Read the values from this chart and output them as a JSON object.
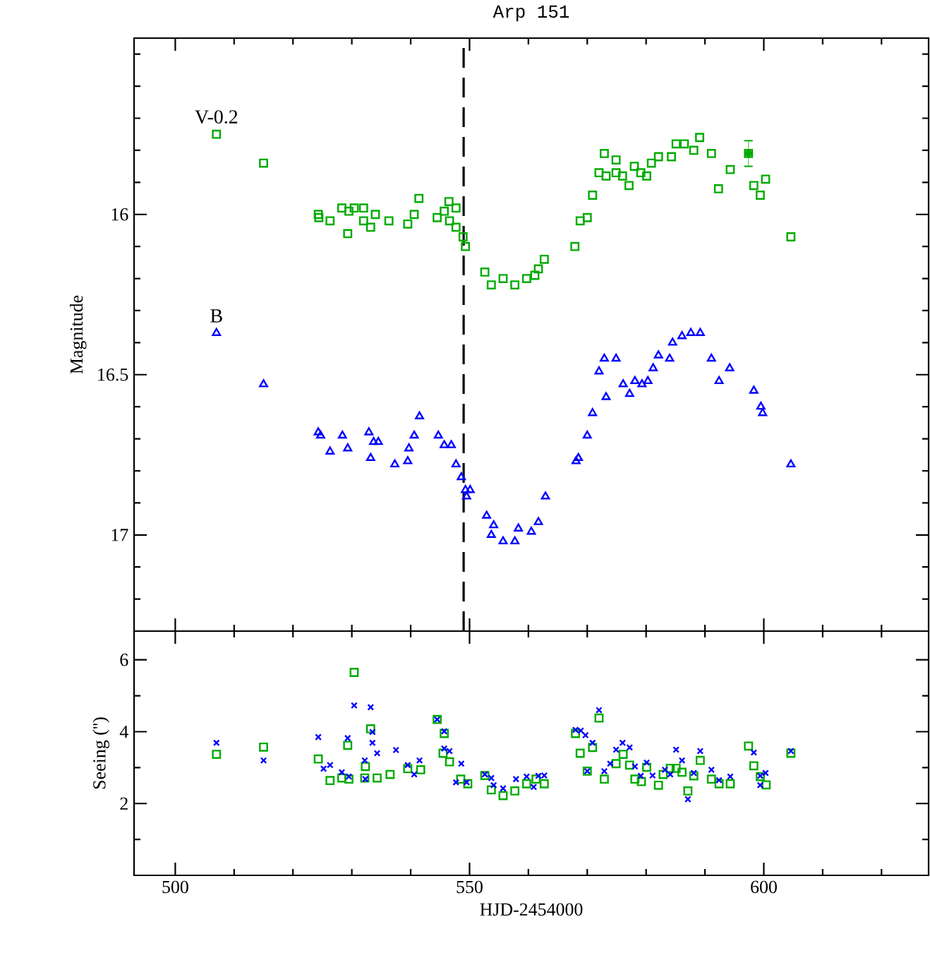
{
  "chart_data": [
    {
      "type": "scatter",
      "title": "Arp 151",
      "ylabel": "Magnitude",
      "xlim": [
        493,
        628
      ],
      "ylim": [
        17.3,
        15.45
      ],
      "xticks": [
        500,
        {
          "value": 510,
          "label": null
        },
        {
          "value": 520,
          "label": null
        },
        {
          "value": 530,
          "label": null
        },
        {
          "value": 540,
          "label": null
        },
        550,
        {
          "value": 560,
          "label": null
        },
        {
          "value": 570,
          "label": null
        },
        {
          "value": 580,
          "label": null
        },
        {
          "value": 590,
          "label": null
        },
        600,
        {
          "value": 610,
          "label": null
        },
        {
          "value": 620,
          "label": null
        }
      ],
      "yticks": [
        {
          "value": 15.5,
          "label": null
        },
        {
          "value": 15.6,
          "label": null
        },
        {
          "value": 15.7,
          "label": null
        },
        {
          "value": 15.8,
          "label": null
        },
        {
          "value": 15.9,
          "label": null
        },
        16,
        {
          "value": 16.1,
          "label": null
        },
        {
          "value": 16.2,
          "label": null
        },
        {
          "value": 16.3,
          "label": null
        },
        {
          "value": 16.4,
          "label": null
        },
        16.5,
        {
          "value": 16.6,
          "label": null
        },
        {
          "value": 16.7,
          "label": null
        },
        {
          "value": 16.8,
          "label": null
        },
        {
          "value": 16.9,
          "label": null
        },
        17,
        {
          "value": 17.1,
          "label": null
        },
        {
          "value": 17.2,
          "label": null
        }
      ],
      "tick_labels": "y",
      "ref_lines": [
        {
          "axis": "x",
          "value": 549,
          "color": "#000000",
          "line_style": "dashed"
        }
      ],
      "series": [
        {
          "name": "V-0.2",
          "color": "#00aa00",
          "marker": "square",
          "x": [
            507.0,
            515.0,
            524.3,
            524.4,
            526.3,
            528.3,
            529.3,
            529.5,
            530.4,
            532.0,
            532.0,
            533.2,
            534.0,
            536.3,
            539.5,
            540.6,
            541.4,
            544.5,
            545.7,
            546.5,
            547.7,
            546.6,
            547.7,
            548.9,
            549.3,
            552.6,
            553.7,
            555.7,
            557.7,
            559.7,
            561.1,
            561.7,
            562.7,
            567.9,
            568.8,
            570.0,
            570.9,
            572.0,
            572.9,
            573.2,
            574.9,
            574.9,
            576.0,
            577.1,
            578.0,
            579.1,
            580.1,
            580.9,
            582.1,
            584.3,
            585.1,
            586.5,
            588.1,
            589.1,
            591.1,
            592.3,
            594.3,
            597.4,
            598.3,
            599.4,
            600.3,
            604.6
          ],
          "values": [
            15.75,
            15.84,
            16.0,
            16.01,
            16.02,
            15.98,
            16.06,
            15.99,
            15.98,
            15.98,
            16.02,
            16.04,
            16.0,
            16.02,
            16.03,
            16.0,
            15.95,
            16.01,
            15.99,
            15.96,
            15.98,
            16.02,
            16.04,
            16.07,
            16.1,
            16.18,
            16.22,
            16.2,
            16.22,
            16.2,
            16.19,
            16.17,
            16.14,
            16.1,
            16.02,
            16.01,
            15.94,
            15.87,
            15.81,
            15.88,
            15.83,
            15.87,
            15.88,
            15.91,
            15.85,
            15.87,
            15.88,
            15.84,
            15.82,
            15.82,
            15.78,
            15.78,
            15.8,
            15.76,
            15.81,
            15.92,
            15.86,
            15.81,
            15.91,
            15.94,
            15.89,
            16.07
          ],
          "errors": [
            null,
            null,
            null,
            null,
            null,
            null,
            null,
            null,
            null,
            null,
            null,
            null,
            null,
            null,
            null,
            null,
            null,
            null,
            null,
            null,
            null,
            null,
            null,
            null,
            null,
            null,
            null,
            null,
            null,
            null,
            null,
            null,
            null,
            null,
            null,
            null,
            null,
            null,
            null,
            null,
            null,
            null,
            null,
            null,
            null,
            null,
            null,
            null,
            null,
            null,
            null,
            null,
            null,
            null,
            null,
            null,
            null,
            0.04,
            null,
            null,
            null,
            null
          ]
        },
        {
          "name": "B",
          "color": "#0000ff",
          "marker": "triangle",
          "x": [
            507.0,
            515.0,
            524.3,
            524.7,
            526.3,
            528.4,
            529.3,
            532.9,
            533.7,
            533.2,
            534.5,
            537.3,
            539.5,
            539.7,
            540.6,
            541.5,
            544.7,
            545.7,
            546.9,
            547.7,
            548.6,
            549.3,
            549.5,
            550.1,
            552.9,
            554.1,
            553.7,
            555.7,
            557.7,
            558.3,
            560.5,
            561.7,
            562.9,
            568.5,
            568.1,
            570.0,
            570.9,
            572.0,
            573.2,
            572.9,
            574.9,
            576.1,
            577.2,
            578.1,
            579.3,
            580.3,
            581.2,
            582.1,
            584.0,
            584.5,
            586.1,
            587.6,
            589.2,
            591.1,
            592.4,
            594.2,
            598.3,
            599.5,
            599.8,
            604.6
          ],
          "values": [
            16.37,
            16.53,
            16.68,
            16.69,
            16.74,
            16.69,
            16.73,
            16.68,
            16.71,
            16.76,
            16.71,
            16.78,
            16.77,
            16.73,
            16.69,
            16.63,
            16.69,
            16.72,
            16.72,
            16.78,
            16.82,
            16.86,
            16.88,
            16.86,
            16.94,
            16.97,
            17.0,
            17.02,
            17.02,
            16.98,
            16.99,
            16.96,
            16.88,
            16.76,
            16.77,
            16.69,
            16.62,
            16.49,
            16.57,
            16.45,
            16.45,
            16.53,
            16.56,
            16.52,
            16.53,
            16.52,
            16.48,
            16.44,
            16.45,
            16.4,
            16.38,
            16.37,
            16.37,
            16.45,
            16.52,
            16.48,
            16.55,
            16.6,
            16.62,
            16.78
          ]
        }
      ]
    },
    {
      "type": "scatter",
      "xlabel": "HJD-2454000",
      "ylabel": "Seeing ('')",
      "xlim": [
        493,
        628
      ],
      "ylim": [
        0,
        6.8
      ],
      "xticks": [
        500,
        {
          "value": 510,
          "label": null
        },
        {
          "value": 520,
          "label": null
        },
        {
          "value": 530,
          "label": null
        },
        {
          "value": 540,
          "label": null
        },
        550,
        {
          "value": 560,
          "label": null
        },
        {
          "value": 570,
          "label": null
        },
        {
          "value": 580,
          "label": null
        },
        {
          "value": 590,
          "label": null
        },
        600,
        {
          "value": 610,
          "label": null
        },
        {
          "value": 620,
          "label": null
        }
      ],
      "yticks": [
        {
          "value": 1,
          "label": null
        },
        2,
        {
          "value": 3,
          "label": null
        },
        4,
        {
          "value": 5,
          "label": null
        },
        6
      ],
      "series": [
        {
          "color": "#00aa00",
          "marker": "square",
          "x": [
            507.0,
            515.0,
            524.3,
            526.3,
            528.3,
            529.3,
            529.5,
            530.4,
            532.2,
            532.3,
            533.2,
            534.3,
            536.5,
            539.5,
            541.7,
            544.5,
            545.7,
            545.5,
            546.6,
            548.5,
            549.7,
            552.6,
            553.7,
            555.7,
            557.7,
            559.7,
            561.3,
            562.7,
            568.0,
            568.8,
            570.0,
            570.9,
            572.0,
            572.9,
            574.9,
            576.1,
            577.2,
            578.1,
            579.2,
            580.1,
            582.1,
            582.9,
            584.1,
            585.1,
            586.1,
            587.1,
            588.1,
            589.2,
            591.1,
            592.4,
            594.3,
            597.4,
            598.3,
            599.4,
            600.4,
            604.6
          ],
          "values": [
            3.37,
            3.57,
            3.24,
            2.64,
            2.71,
            3.62,
            2.68,
            5.65,
            2.71,
            3.03,
            4.08,
            2.71,
            2.81,
            2.97,
            2.94,
            4.34,
            3.95,
            3.4,
            3.16,
            2.68,
            2.55,
            2.78,
            2.38,
            2.22,
            2.35,
            2.55,
            2.68,
            2.55,
            3.95,
            3.4,
            2.9,
            3.56,
            4.38,
            2.68,
            3.11,
            3.37,
            3.07,
            2.68,
            2.61,
            3.01,
            2.51,
            2.81,
            2.98,
            2.98,
            2.87,
            2.35,
            2.77,
            3.2,
            2.68,
            2.55,
            2.55,
            3.6,
            3.05,
            2.75,
            2.52,
            3.4
          ]
        },
        {
          "color": "#0000ff",
          "marker": "cross",
          "x": [
            507.0,
            515.0,
            524.3,
            525.2,
            526.3,
            528.3,
            529.3,
            529.5,
            530.4,
            532.2,
            532.3,
            533.2,
            533.5,
            533.5,
            534.3,
            537.5,
            539.5,
            540.6,
            541.5,
            544.5,
            545.7,
            545.7,
            546.6,
            547.7,
            548.6,
            549.5,
            552.6,
            553.7,
            554.1,
            555.7,
            557.9,
            559.7,
            560.9,
            561.7,
            562.7,
            568.0,
            568.9,
            569.7,
            570.9,
            572.0,
            570.0,
            572.9,
            573.9,
            574.9,
            576.0,
            577.2,
            578.1,
            579.1,
            580.1,
            581.1,
            583.2,
            584.1,
            585.1,
            586.1,
            587.1,
            588.1,
            589.2,
            591.1,
            592.4,
            594.3,
            598.3,
            599.4,
            599.4,
            600.3,
            604.6
          ],
          "values": [
            3.69,
            3.2,
            3.85,
            2.97,
            3.07,
            2.87,
            3.82,
            2.75,
            4.73,
            3.2,
            2.68,
            4.68,
            3.99,
            3.69,
            3.4,
            3.49,
            3.07,
            2.81,
            3.2,
            4.34,
            4.01,
            3.53,
            3.46,
            2.59,
            3.11,
            2.59,
            2.81,
            2.71,
            2.51,
            2.42,
            2.68,
            2.75,
            2.46,
            2.77,
            2.78,
            4.05,
            4.03,
            3.9,
            3.69,
            4.6,
            2.9,
            2.9,
            3.11,
            3.5,
            3.69,
            3.56,
            3.03,
            2.77,
            3.14,
            2.78,
            2.94,
            2.81,
            3.5,
            3.2,
            2.12,
            2.85,
            3.46,
            2.94,
            2.65,
            2.75,
            3.42,
            2.77,
            2.51,
            2.85,
            3.46
          ]
        }
      ]
    }
  ]
}
